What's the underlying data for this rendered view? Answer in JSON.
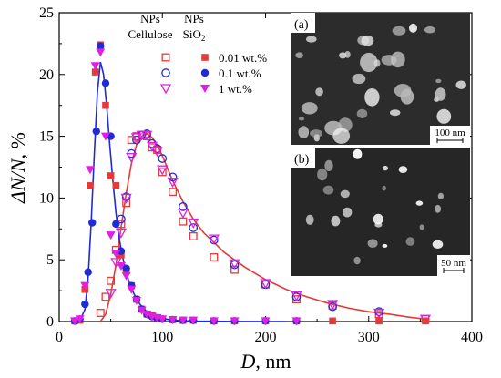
{
  "chart_data": {
    "type": "scatter",
    "xlabel_var": "D",
    "xlabel_unit": ", nm",
    "ylabel_text": "ΔN/N",
    "ylabel_unit": ", %",
    "xlim": [
      0,
      400
    ],
    "ylim": [
      0,
      25
    ],
    "x_ticks": [
      "0",
      "100",
      "200",
      "300",
      "400"
    ],
    "y_ticks": [
      "0",
      "5",
      "10",
      "15",
      "20",
      "25"
    ],
    "legend": {
      "col_headers": [
        {
          "line1": "NPs",
          "line2": "Cellulose"
        },
        {
          "line1": "NPs",
          "line2": "SiO",
          "sub": "2"
        }
      ],
      "rows": [
        "0.01 wt.%",
        "0.1 wt.%",
        "1 wt.%"
      ]
    },
    "series": [
      {
        "name": "0.01 wt.%",
        "material": "Cellulose",
        "marker": "open-square",
        "color": "#e53a3a",
        "x": [
          40,
          45,
          50,
          55,
          60,
          65,
          70,
          75,
          80,
          85,
          90,
          95,
          100,
          110,
          120,
          130,
          150,
          170,
          200,
          230,
          265,
          310,
          355
        ],
        "y": [
          0.7,
          2.0,
          3.3,
          5.8,
          7.9,
          9.6,
          14.7,
          15.0,
          15.1,
          15.0,
          14.1,
          13.9,
          12.1,
          10.5,
          8.1,
          6.9,
          5.2,
          4.2,
          3.0,
          1.8,
          1.3,
          0.6,
          0.2
        ]
      },
      {
        "name": "0.1 wt.%",
        "material": "Cellulose",
        "marker": "open-circle",
        "color": "#1f2bd6",
        "x": [
          60,
          65,
          70,
          75,
          80,
          85,
          90,
          95,
          100,
          110,
          120,
          130,
          150,
          170,
          200,
          230,
          265,
          310
        ],
        "y": [
          8.3,
          10.1,
          13.6,
          14.7,
          15.1,
          15.2,
          14.4,
          14.0,
          13.2,
          11.7,
          9.3,
          7.6,
          6.6,
          4.6,
          3.0,
          2.0,
          1.2,
          0.8
        ]
      },
      {
        "name": "1 wt.%",
        "material": "Cellulose",
        "marker": "open-triangle",
        "color": "#e020e0",
        "x": [
          50,
          55,
          60,
          65,
          70,
          75,
          80,
          85,
          90,
          95,
          100,
          110,
          120,
          130,
          150,
          170,
          200,
          230,
          265,
          310,
          355
        ],
        "y": [
          2.3,
          4.8,
          7.2,
          10.0,
          13.3,
          14.9,
          15.1,
          15.1,
          14.2,
          13.8,
          12.3,
          11.3,
          8.8,
          8.0,
          6.7,
          4.7,
          3.1,
          2.1,
          1.4,
          0.7,
          0.2
        ]
      },
      {
        "name": "0.01 wt.%",
        "material": "SiO2",
        "marker": "filled-square",
        "color": "#e53a3a",
        "x": [
          15,
          20,
          25,
          30,
          35,
          40,
          45,
          50,
          55,
          60,
          65,
          70,
          75,
          80,
          85,
          90,
          95,
          100,
          110,
          120,
          130,
          150,
          170,
          200,
          230,
          265,
          310,
          355
        ],
        "y": [
          0.05,
          0.1,
          2.6,
          11.0,
          20.2,
          22.4,
          17.5,
          11.8,
          11.0,
          5.4,
          4.2,
          2.9,
          1.8,
          1.0,
          0.6,
          0.5,
          0.3,
          0.2,
          0.15,
          0.1,
          0.1,
          0.05,
          0.05,
          0.05,
          0.05,
          0.05,
          0.05,
          0.05
        ]
      },
      {
        "name": "0.1 wt.%",
        "material": "SiO2",
        "marker": "filled-circle",
        "color": "#1f2bd6",
        "x": [
          15,
          20,
          25,
          28,
          32,
          36,
          40,
          45,
          50,
          55,
          60,
          65,
          70,
          75,
          80,
          85,
          90,
          95,
          100,
          110,
          120,
          130,
          150,
          170,
          200,
          230
        ],
        "y": [
          0.05,
          0.2,
          1.4,
          4.0,
          8.0,
          15.4,
          22.3,
          19.3,
          15.0,
          7.9,
          5.7,
          4.3,
          2.9,
          1.8,
          1.0,
          0.6,
          0.4,
          0.3,
          0.2,
          0.15,
          0.1,
          0.1,
          0.05,
          0.05,
          0.05,
          0.05
        ]
      },
      {
        "name": "1 wt.%",
        "material": "SiO2",
        "marker": "filled-triangle",
        "color": "#e020e0",
        "x": [
          15,
          20,
          25,
          30,
          35,
          40,
          45,
          50,
          55,
          60,
          65,
          70,
          75,
          80,
          85,
          90,
          95,
          100,
          110,
          120,
          130,
          150,
          170,
          200,
          230
        ],
        "y": [
          0.05,
          0.2,
          2.9,
          12.3,
          20.7,
          21.8,
          15.0,
          7.0,
          5.5,
          4.5,
          3.7,
          2.6,
          1.7,
          0.9,
          0.6,
          0.4,
          0.3,
          0.2,
          0.15,
          0.1,
          0.1,
          0.05,
          0.05,
          0.05,
          0.05
        ]
      }
    ],
    "fit_curves": [
      {
        "color": "#e53a3a",
        "x": [
          40,
          45,
          50,
          55,
          60,
          65,
          70,
          75,
          80,
          85,
          90,
          95,
          100,
          110,
          120,
          130,
          140,
          150,
          160,
          170,
          180,
          200,
          220,
          240,
          260,
          280,
          300,
          320,
          340,
          355
        ],
        "y": [
          0.0,
          0.6,
          2.2,
          4.6,
          7.6,
          10.4,
          12.8,
          14.3,
          15.0,
          15.2,
          14.9,
          14.3,
          13.4,
          11.4,
          9.7,
          8.3,
          7.2,
          6.4,
          5.6,
          5.0,
          4.4,
          3.4,
          2.6,
          2.0,
          1.5,
          1.1,
          0.8,
          0.6,
          0.35,
          0.2
        ]
      },
      {
        "color": "#1f2bd6",
        "x": [
          15,
          20,
          25,
          28,
          31,
          34,
          37,
          40,
          43,
          46,
          49,
          52,
          55,
          58,
          61,
          64,
          67,
          70,
          75,
          80,
          85,
          90,
          100,
          110,
          120,
          130,
          150,
          170,
          200,
          220
        ],
        "y": [
          0.0,
          0.05,
          1.0,
          3.5,
          8.0,
          13.5,
          18.5,
          21.0,
          20.0,
          17.5,
          14.3,
          11.4,
          8.8,
          6.8,
          5.4,
          4.3,
          3.4,
          2.7,
          1.8,
          1.2,
          0.8,
          0.5,
          0.25,
          0.12,
          0.07,
          0.04,
          0.02,
          0.01,
          0.0,
          0.0
        ]
      }
    ],
    "insets": [
      {
        "label": "(a)",
        "scale_text": "100 nm"
      },
      {
        "label": "(b)",
        "scale_text": "50 nm"
      }
    ]
  }
}
